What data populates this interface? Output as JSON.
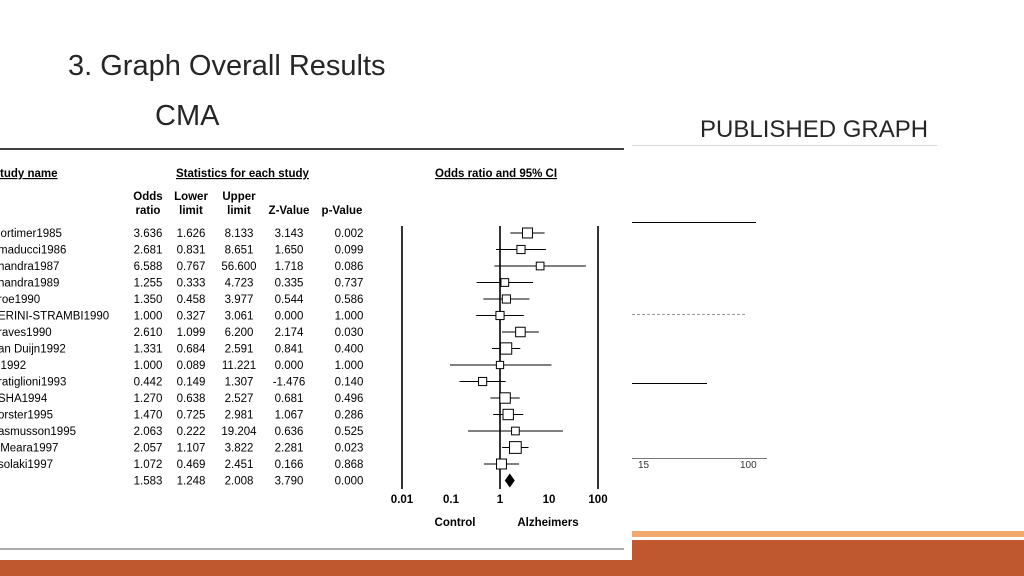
{
  "slide": {
    "title": "3. Graph Overall Results",
    "subtitle": "CMA",
    "published_label": "PUBLISHED GRAPH",
    "accent_color": "#c0582f",
    "accent_light_color": "#f0a86d"
  },
  "published_graph": {
    "axis_ticks": [
      "15",
      "100"
    ]
  },
  "forest_plot": {
    "headers": {
      "study_name": "tudy name",
      "statistics": "Statistics for each study",
      "plot": "Odds ratio and 95% CI",
      "odds_ratio_1": "Odds",
      "odds_ratio_2": "ratio",
      "lower_1": "Lower",
      "lower_2": "limit",
      "upper_1": "Upper",
      "upper_2": "limit",
      "z_value": "Z-Value",
      "p_value": "p-Value"
    },
    "axis": {
      "ticks": [
        "0.01",
        "0.1",
        "1",
        "10",
        "100"
      ],
      "left_label": "Control",
      "right_label": "Alzheimers"
    }
  },
  "chart_data": {
    "type": "forest",
    "title": "Odds ratio and 95% CI",
    "x_scale": "log10",
    "xlim": [
      0.01,
      100
    ],
    "rows": [
      {
        "study": "lortimer1985",
        "or": "3.636",
        "lower": "1.626",
        "upper": "8.133",
        "z": "3.143",
        "p": "0.002",
        "or_v": 3.636,
        "lo_v": 1.626,
        "hi_v": 8.133,
        "weight": 0.55
      },
      {
        "study": "maducci1986",
        "or": "2.681",
        "lower": "0.831",
        "upper": "8.651",
        "z": "1.650",
        "p": "0.099",
        "or_v": 2.681,
        "lo_v": 0.831,
        "hi_v": 8.651,
        "weight": 0.35
      },
      {
        "study": "handra1987",
        "or": "6.588",
        "lower": "0.767",
        "upper": "56.600",
        "z": "1.718",
        "p": "0.086",
        "or_v": 6.588,
        "lo_v": 0.767,
        "hi_v": 56.6,
        "weight": 0.3
      },
      {
        "study": "handra1989",
        "or": "1.255",
        "lower": "0.333",
        "upper": "4.723",
        "z": "0.335",
        "p": "0.737",
        "or_v": 1.255,
        "lo_v": 0.333,
        "hi_v": 4.723,
        "weight": 0.3
      },
      {
        "study": "roe1990",
        "or": "1.350",
        "lower": "0.458",
        "upper": "3.977",
        "z": "0.544",
        "p": "0.586",
        "or_v": 1.35,
        "lo_v": 0.458,
        "hi_v": 3.977,
        "weight": 0.35
      },
      {
        "study": "ERINI-STRAMBI1990",
        "or": "1.000",
        "lower": "0.327",
        "upper": "3.061",
        "z": "0.000",
        "p": "1.000",
        "or_v": 1.0,
        "lo_v": 0.327,
        "hi_v": 3.061,
        "weight": 0.35
      },
      {
        "study": "raves1990",
        "or": "2.610",
        "lower": "1.099",
        "upper": "6.200",
        "z": "2.174",
        "p": "0.030",
        "or_v": 2.61,
        "lo_v": 1.099,
        "hi_v": 6.2,
        "weight": 0.5
      },
      {
        "study": "an Duijn1992",
        "or": "1.331",
        "lower": "0.684",
        "upper": "2.591",
        "z": "0.841",
        "p": "0.400",
        "or_v": 1.331,
        "lo_v": 0.684,
        "hi_v": 2.591,
        "weight": 0.7
      },
      {
        "study": "i1992",
        "or": "1.000",
        "lower": "0.089",
        "upper": "11.221",
        "z": "0.000",
        "p": "1.000",
        "or_v": 1.0,
        "lo_v": 0.089,
        "hi_v": 11.221,
        "weight": 0.25
      },
      {
        "study": "ratiglioni1993",
        "or": "0.442",
        "lower": "0.149",
        "upper": "1.307",
        "z": "-1.476",
        "p": "0.140",
        "or_v": 0.442,
        "lo_v": 0.149,
        "hi_v": 1.307,
        "weight": 0.35
      },
      {
        "study": "SHA1994",
        "or": "1.270",
        "lower": "0.638",
        "upper": "2.527",
        "z": "0.681",
        "p": "0.496",
        "or_v": 1.27,
        "lo_v": 0.638,
        "hi_v": 2.527,
        "weight": 0.6
      },
      {
        "study": "orster1995",
        "or": "1.470",
        "lower": "0.725",
        "upper": "2.981",
        "z": "1.067",
        "p": "0.286",
        "or_v": 1.47,
        "lo_v": 0.725,
        "hi_v": 2.981,
        "weight": 0.6
      },
      {
        "study": "asmusson1995",
        "or": "2.063",
        "lower": "0.222",
        "upper": "19.204",
        "z": "0.636",
        "p": "0.525",
        "or_v": 2.063,
        "lo_v": 0.222,
        "hi_v": 19.204,
        "weight": 0.3
      },
      {
        "study": "'Meara1997",
        "or": "2.057",
        "lower": "1.107",
        "upper": "3.822",
        "z": "2.281",
        "p": "0.023",
        "or_v": 2.057,
        "lo_v": 1.107,
        "hi_v": 3.822,
        "weight": 0.75
      },
      {
        "study": "solaki1997",
        "or": "1.072",
        "lower": "0.469",
        "upper": "2.451",
        "z": "0.166",
        "p": "0.868",
        "or_v": 1.072,
        "lo_v": 0.469,
        "hi_v": 2.451,
        "weight": 0.55
      }
    ],
    "overall": {
      "or": "1.583",
      "lower": "1.248",
      "upper": "2.008",
      "z": "3.790",
      "p": "0.000",
      "or_v": 1.583,
      "lo_v": 1.248,
      "hi_v": 2.008
    }
  }
}
